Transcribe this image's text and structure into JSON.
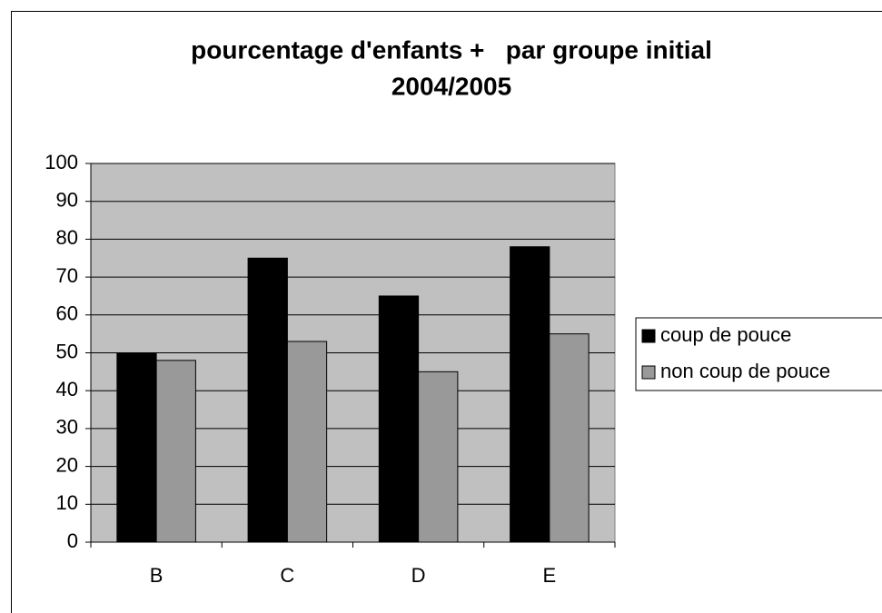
{
  "chart_data": {
    "type": "bar",
    "title": [
      "pourcentage d'enfants +   par groupe initial",
      "2004/2005"
    ],
    "categories": [
      "B",
      "C",
      "D",
      "E"
    ],
    "series": [
      {
        "name": "coup de pouce",
        "color": "#000000",
        "values": [
          50,
          75,
          65,
          78
        ]
      },
      {
        "name": "non coup de pouce",
        "color": "#999999",
        "values": [
          48,
          53,
          45,
          55
        ]
      }
    ],
    "ylim": [
      0,
      100
    ],
    "yticks": [
      0,
      10,
      20,
      30,
      40,
      50,
      60,
      70,
      80,
      90,
      100
    ],
    "grid": true,
    "plot_background": "#c0c0c0",
    "legend": "right"
  }
}
